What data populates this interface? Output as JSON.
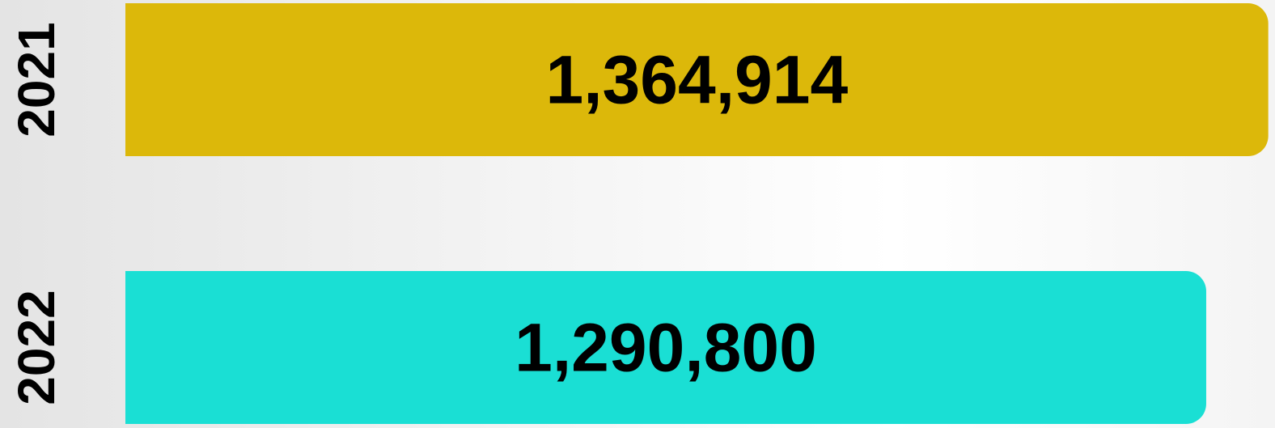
{
  "chart_data": {
    "type": "bar",
    "orientation": "horizontal",
    "categories": [
      "2021",
      "2022"
    ],
    "values": [
      1364914,
      1290800
    ],
    "value_labels": [
      "1,364,914",
      "1,290,800"
    ],
    "colors": [
      "#dcb80a",
      "#1adfd4"
    ],
    "xlim": [
      0,
      1400000
    ]
  }
}
